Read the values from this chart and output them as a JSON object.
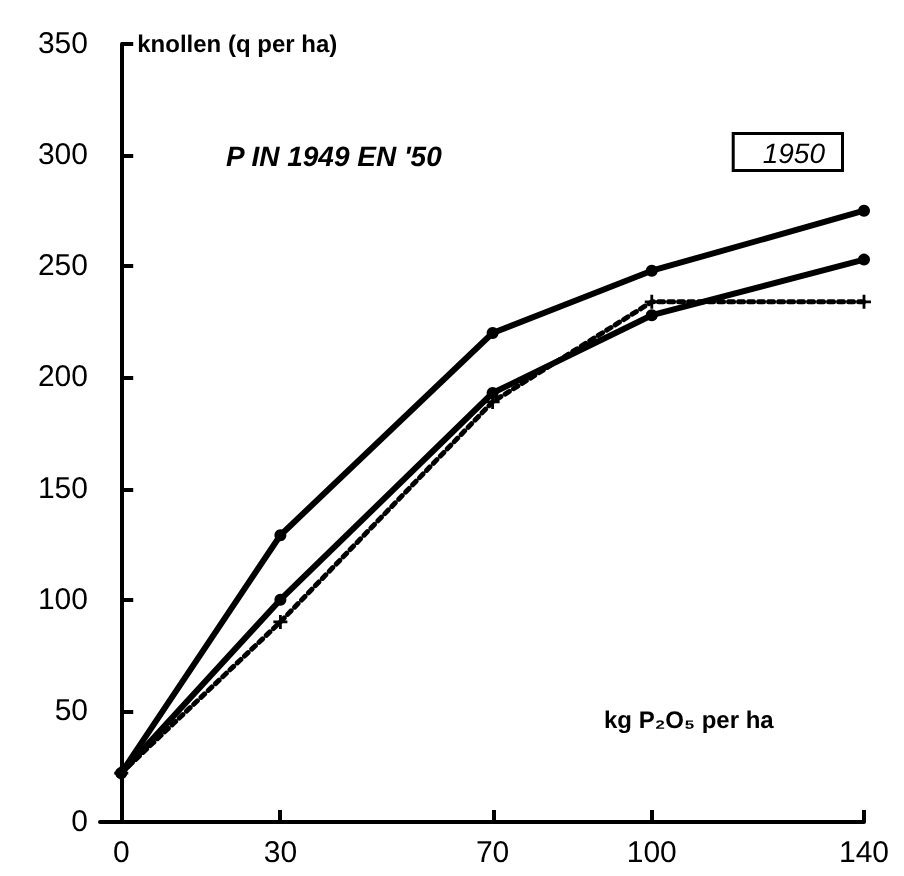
{
  "chart_data": {
    "type": "line",
    "title": "P IN 1949 EN '50",
    "ylabel": "knollen (q per ha)",
    "xlabel": "kg P₂O₅ per ha",
    "annotations": [
      "1950"
    ],
    "x": [
      0,
      30,
      70,
      100,
      140
    ],
    "series": [
      {
        "color": "#000000",
        "values": [
          22,
          129,
          220,
          248,
          275
        ],
        "marker": "circle",
        "line_style": "solid"
      },
      {
        "color": "#000000",
        "values": [
          22,
          100,
          193,
          228,
          253
        ],
        "marker": "circle",
        "line_style": "solid"
      },
      {
        "color": "#000000",
        "values": [
          22,
          90,
          189,
          234,
          234
        ],
        "marker": "cross",
        "line_style": "dotted"
      }
    ],
    "xlim": [
      -4,
      140
    ],
    "xticks": [
      0,
      30,
      70,
      100,
      140
    ],
    "ylim": [
      0,
      350
    ],
    "yticks": [
      0,
      50,
      100,
      150,
      200,
      250,
      300,
      350
    ],
    "grid": false
  }
}
